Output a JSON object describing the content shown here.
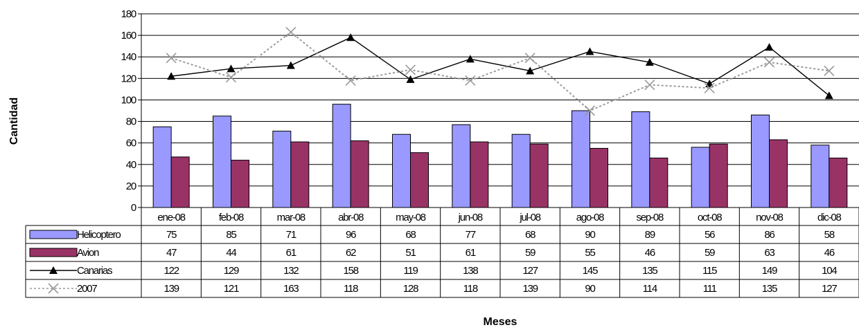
{
  "chart_data": {
    "type": "bar",
    "categories": [
      "ene-08",
      "feb-08",
      "mar-08",
      "abr-08",
      "may-08",
      "jun-08",
      "jul-08",
      "ago-08",
      "sep-08",
      "oct-08",
      "nov-08",
      "dic-08"
    ],
    "series": [
      {
        "name": "Helicoptero",
        "kind": "bar",
        "color": "#9999ff",
        "values": [
          75,
          85,
          71,
          96,
          68,
          77,
          68,
          90,
          89,
          56,
          86,
          58
        ]
      },
      {
        "name": "Avion",
        "kind": "bar",
        "color": "#993366",
        "values": [
          47,
          44,
          61,
          62,
          51,
          61,
          59,
          55,
          46,
          59,
          63,
          46
        ]
      },
      {
        "name": "Canarias",
        "kind": "line",
        "color": "#000000",
        "marker": "triangle",
        "values": [
          122,
          129,
          132,
          158,
          119,
          138,
          127,
          145,
          135,
          115,
          149,
          104
        ]
      },
      {
        "name": "2007",
        "kind": "line",
        "color": "#999999",
        "marker": "x",
        "dashed": true,
        "values": [
          139,
          121,
          163,
          118,
          128,
          118,
          139,
          90,
          114,
          111,
          135,
          127
        ]
      }
    ],
    "yticks": [
      0,
      20,
      40,
      60,
      80,
      100,
      120,
      140,
      160,
      180
    ],
    "ylim": [
      0,
      180
    ],
    "xlabel": "Meses",
    "ylabel": "Cantidad",
    "grid": true,
    "data_table": true
  }
}
